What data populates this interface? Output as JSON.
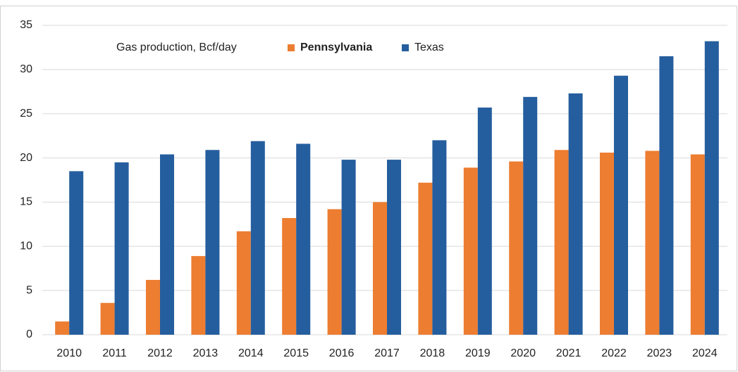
{
  "chart_data": {
    "type": "bar",
    "legend_title": "Gas production, Bcf/day",
    "categories": [
      "2010",
      "2011",
      "2012",
      "2013",
      "2014",
      "2015",
      "2016",
      "2017",
      "2018",
      "2019",
      "2020",
      "2021",
      "2022",
      "2023",
      "2024"
    ],
    "series": [
      {
        "name": "Pennsylvania",
        "color": "#ed7d31",
        "values": [
          1.5,
          3.6,
          6.2,
          8.9,
          11.7,
          13.2,
          14.2,
          15.0,
          17.2,
          18.9,
          19.6,
          20.9,
          20.6,
          20.8,
          20.4
        ]
      },
      {
        "name": "Texas",
        "color": "#255e9e",
        "values": [
          18.5,
          19.5,
          20.4,
          20.9,
          21.9,
          21.6,
          19.8,
          19.8,
          22.0,
          25.7,
          26.9,
          27.3,
          29.3,
          31.5,
          33.2
        ]
      }
    ],
    "ylim": [
      0,
      35
    ],
    "yticks": [
      0,
      5,
      10,
      15,
      20,
      25,
      30,
      35
    ],
    "grid": true
  }
}
